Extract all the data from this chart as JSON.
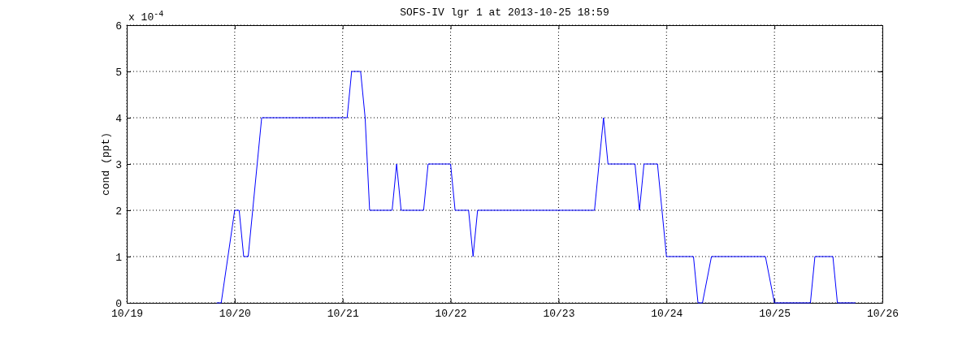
{
  "chart_data": {
    "type": "line",
    "title": "SOFS-IV lgr 1 at 2013-10-25 18:59",
    "ylabel": "cond (ppt)",
    "annotations": [
      "x 10$^{-4}$"
    ],
    "x": [
      "2013-10-19T20:00",
      "2013-10-19T21:00",
      "2013-10-20T00:00",
      "2013-10-20T01:00",
      "2013-10-20T02:00",
      "2013-10-20T03:00",
      "2013-10-20T06:00",
      "2013-10-21T01:00",
      "2013-10-21T02:00",
      "2013-10-21T04:00",
      "2013-10-21T05:00",
      "2013-10-21T06:00",
      "2013-10-21T11:00",
      "2013-10-21T12:00",
      "2013-10-21T13:00",
      "2013-10-21T18:00",
      "2013-10-21T19:00",
      "2013-10-22T00:00",
      "2013-10-22T01:00",
      "2013-10-22T04:00",
      "2013-10-22T05:00",
      "2013-10-22T06:00",
      "2013-10-23T08:00",
      "2013-10-23T10:00",
      "2013-10-23T11:00",
      "2013-10-23T17:00",
      "2013-10-23T18:00",
      "2013-10-23T19:00",
      "2013-10-23T22:00",
      "2013-10-24T00:00",
      "2013-10-24T06:00",
      "2013-10-24T07:00",
      "2013-10-24T08:00",
      "2013-10-24T10:00",
      "2013-10-24T22:00",
      "2013-10-25T00:00",
      "2013-10-25T08:00",
      "2013-10-25T09:00",
      "2013-10-25T13:00",
      "2013-10-25T14:00",
      "2013-10-25T18:00"
    ],
    "series": [
      {
        "color": "#0000ff",
        "values": [
          0,
          0,
          2,
          2,
          1,
          1,
          4,
          4,
          5,
          5,
          4,
          2,
          2,
          3,
          2,
          2,
          3,
          3,
          2,
          2,
          1,
          2,
          2,
          4,
          3,
          3,
          2,
          3,
          3,
          1,
          1,
          0,
          0,
          1,
          1,
          0,
          0,
          1,
          1,
          0,
          0
        ]
      }
    ],
    "xlim": [
      "2013-10-19T00:00",
      "2013-10-26T00:00"
    ],
    "xticks": [
      {
        "value": "2013-10-19T00:00",
        "label": "10/19"
      },
      {
        "value": "2013-10-20T00:00",
        "label": "10/20"
      },
      {
        "value": "2013-10-21T00:00",
        "label": "10/21"
      },
      {
        "value": "2013-10-22T00:00",
        "label": "10/22"
      },
      {
        "value": "2013-10-23T00:00",
        "label": "10/23"
      },
      {
        "value": "2013-10-24T00:00",
        "label": "10/24"
      },
      {
        "value": "2013-10-25T00:00",
        "label": "10/25"
      },
      {
        "value": "2013-10-26T00:00",
        "label": "10/26"
      }
    ],
    "ylim": [
      0,
      6
    ],
    "yticks": [
      0,
      1,
      2,
      3,
      4,
      5,
      6
    ],
    "grid": true,
    "line_style": "solid",
    "marker": "none"
  }
}
